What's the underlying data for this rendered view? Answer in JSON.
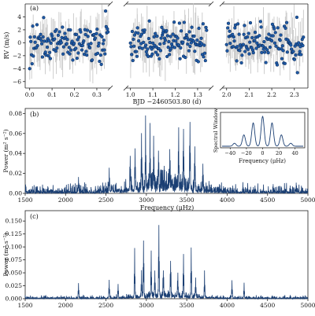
{
  "chart_data": [
    {
      "panel": "(a)",
      "type": "scatter",
      "xlabel": "BJD −2460503.80 (d)",
      "ylabel": "RV (m/s)",
      "ylim": [
        -7,
        6
      ],
      "yticks": [
        "−6",
        "−4",
        "−2",
        "0",
        "2",
        "4"
      ],
      "segments": [
        {
          "xlim": [
            -0.02,
            0.36
          ],
          "xticks": [
            "0.0",
            "0.1",
            "0.2",
            "0.3"
          ],
          "tickvals": [
            0.0,
            0.1,
            0.2,
            0.3
          ],
          "t_start": 0.0,
          "t_end": 0.35,
          "n": 130
        },
        {
          "xlim": [
            0.98,
            1.36
          ],
          "xticks": [
            "1.0",
            "1.1",
            "1.2",
            "1.3"
          ],
          "tickvals": [
            1.0,
            1.1,
            1.2,
            1.3
          ],
          "t_start": 1.0,
          "t_end": 1.34,
          "n": 130
        },
        {
          "xlim": [
            1.98,
            2.36
          ],
          "xticks": [
            "2.0",
            "2.1",
            "2.2",
            "2.3"
          ],
          "tickvals": [
            2.0,
            2.1,
            2.2,
            2.3
          ],
          "t_start": 2.0,
          "t_end": 2.34,
          "n": 130
        }
      ],
      "rv_rms": 1.6,
      "error_bar_typical": 1.7,
      "point_color": "#1f5aa6",
      "errorbar_color": "#c8c8c8",
      "grid": false
    },
    {
      "panel": "(b)",
      "type": "line",
      "xlabel": "Frequency (μHz)",
      "ylabel": "Power (m² s⁻²)",
      "xlim": [
        1500,
        5000
      ],
      "ylim": [
        0,
        0.085
      ],
      "xticks": [
        "1500",
        "2000",
        "2500",
        "3000",
        "3500",
        "4000",
        "4500",
        "5000"
      ],
      "yticks": [
        "0.00",
        "0.02",
        "0.04",
        "0.06",
        "0.08"
      ],
      "peaks": [
        {
          "x": 2800,
          "y": 0.038
        },
        {
          "x": 2860,
          "y": 0.045
        },
        {
          "x": 2940,
          "y": 0.056
        },
        {
          "x": 2990,
          "y": 0.062
        },
        {
          "x": 3045,
          "y": 0.05
        },
        {
          "x": 3090,
          "y": 0.044
        },
        {
          "x": 3150,
          "y": 0.04
        },
        {
          "x": 3290,
          "y": 0.033
        },
        {
          "x": 3400,
          "y": 0.055
        },
        {
          "x": 3460,
          "y": 0.062
        },
        {
          "x": 3540,
          "y": 0.079
        },
        {
          "x": 3600,
          "y": 0.045
        },
        {
          "x": 3700,
          "y": 0.024
        },
        {
          "x": 2160,
          "y": 0.018
        },
        {
          "x": 2540,
          "y": 0.022
        }
      ],
      "line_color": "#1b3f73",
      "inset": {
        "type": "line",
        "xlabel": "Frequency (μHz)",
        "ylabel": "Spectral Window",
        "xlim": [
          -50,
          50
        ],
        "xticks": [
          "−40",
          "−20",
          "0",
          "20",
          "40"
        ],
        "tickvals": [
          -40,
          -20,
          0,
          20,
          40
        ],
        "lobes": [
          {
            "x": 0,
            "y": 1.0
          },
          {
            "x": -11.6,
            "y": 0.78
          },
          {
            "x": 11.6,
            "y": 0.78
          },
          {
            "x": -23.1,
            "y": 0.38
          },
          {
            "x": 23.1,
            "y": 0.38
          },
          {
            "x": -34.7,
            "y": 0.1
          },
          {
            "x": 34.7,
            "y": 0.1
          }
        ]
      }
    },
    {
      "panel": "(c)",
      "type": "line",
      "xlabel": "",
      "ylabel": "Power (m² s⁻²)",
      "xlim": [
        1500,
        5000
      ],
      "ylim": [
        0,
        0.17
      ],
      "xticks": [
        "1500",
        "2000",
        "2500",
        "3000",
        "3500",
        "4000",
        "4500",
        "5000"
      ],
      "yticks": [
        "0.000",
        "0.025",
        "0.050",
        "0.075",
        "0.100",
        "0.125",
        "0.150"
      ],
      "peaks": [
        {
          "x": 2855,
          "y": 0.098
        },
        {
          "x": 2940,
          "y": 0.046
        },
        {
          "x": 2965,
          "y": 0.119
        },
        {
          "x": 3060,
          "y": 0.087
        },
        {
          "x": 3105,
          "y": 0.052
        },
        {
          "x": 3155,
          "y": 0.137
        },
        {
          "x": 3210,
          "y": 0.06
        },
        {
          "x": 3300,
          "y": 0.074
        },
        {
          "x": 3390,
          "y": 0.048
        },
        {
          "x": 3460,
          "y": 0.086
        },
        {
          "x": 3555,
          "y": 0.105
        },
        {
          "x": 3610,
          "y": 0.041
        },
        {
          "x": 3720,
          "y": 0.048
        },
        {
          "x": 4060,
          "y": 0.034
        },
        {
          "x": 4210,
          "y": 0.03
        },
        {
          "x": 2160,
          "y": 0.03
        },
        {
          "x": 2540,
          "y": 0.036
        },
        {
          "x": 2650,
          "y": 0.03
        }
      ],
      "line_color": "#1b3f73"
    }
  ]
}
